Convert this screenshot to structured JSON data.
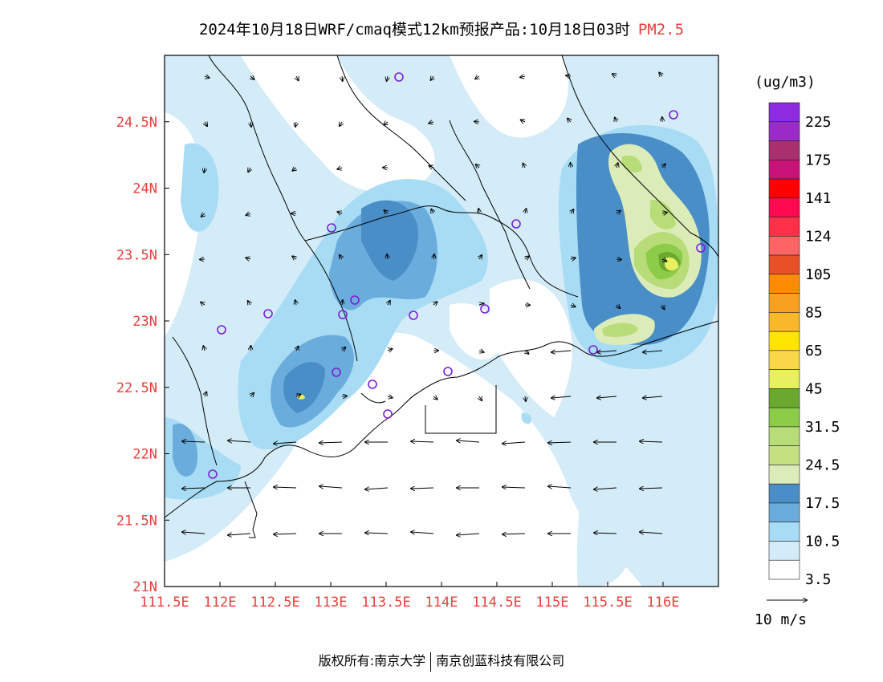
{
  "title": {
    "main": "2024年10月18日WRF/cmaq模式12km预报产品:10月18日03时",
    "variable": "PM2.5"
  },
  "map": {
    "x_ticks": [
      "111.5E",
      "112E",
      "112.5E",
      "113E",
      "113.5E",
      "114E",
      "114.5E",
      "115E",
      "115.5E",
      "116E"
    ],
    "y_ticks": [
      "21N",
      "21.5N",
      "22N",
      "22.5N",
      "23N",
      "23.5N",
      "24N",
      "24.5N"
    ],
    "lon_range": [
      111.5,
      116.5
    ],
    "lat_range": [
      21.0,
      25.0
    ],
    "colors": {
      "tick_label": "#e8403c",
      "frame": "#000000",
      "station_marker": "#7b1fd8"
    }
  },
  "colorbar": {
    "unit": "(ug/m3)",
    "labels": [
      "225",
      "175",
      "141",
      "124",
      "105",
      "85",
      "65",
      "45",
      "31.5",
      "24.5",
      "17.5",
      "10.5",
      "3.5"
    ],
    "colors": [
      "#8c2be0",
      "#9a2bc8",
      "#a8306e",
      "#c8127a",
      "#ff0000",
      "#ff0a50",
      "#ff3048",
      "#ff6464",
      "#e85028",
      "#ff8c00",
      "#f8a020",
      "#f8b828",
      "#ffe400",
      "#f8d848",
      "#e8f060",
      "#6aa830",
      "#8ccc48",
      "#b8dc78",
      "#c4e080",
      "#dcecb8",
      "#4a8ec8",
      "#6aacdc",
      "#a8dcf4",
      "#d4ecf8",
      "#ffffff"
    ]
  },
  "wind_legend": {
    "label": "10 m/s"
  },
  "footer": {
    "left": "版权所有:南京大学",
    "right": "南京创蓝科技有限公司"
  }
}
